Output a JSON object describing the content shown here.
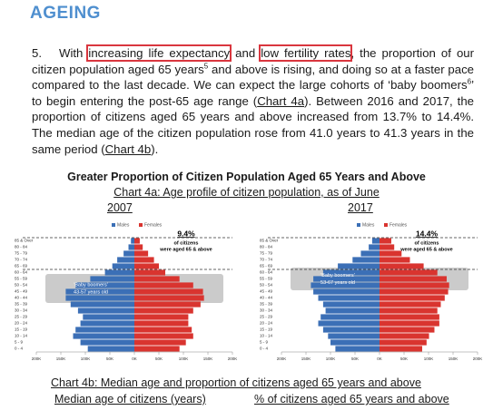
{
  "header": {
    "title": "AGEING"
  },
  "paragraph": {
    "number": "5.",
    "parts": [
      "With ",
      "increasing life expectancy",
      " and ",
      "low fertility rates",
      ", the proportion of our citizen population aged 65 years",
      "5",
      " and above is rising, and doing so at a faster pace compared to the last decade. We can expect the large cohorts of ‘baby boomers",
      "6",
      "’ to begin entering the post-65 age range (",
      "Chart 4a",
      "). Between 2016 and 2017, the proportion of citizens aged 65 years and above increased from 13.7% to 14.4%. The median age of the citizen population rose from 41.0 years to 41.3 years in the same period (",
      "Chart 4b",
      ")."
    ]
  },
  "figure": {
    "title": "Greater Proportion of Citizen Population Aged 65 Years and Above",
    "chart_4a_title": "Chart 4a: Age profile of citizen population, as of June",
    "chart_4b_title": "Chart 4b: Median age and proportion of citizens aged 65 years and above",
    "chart_4b_left": "Median age of citizens (years)",
    "chart_4b_right": "% of citizens aged 65 years and above"
  },
  "chart_data": [
    {
      "type": "pyramid",
      "title": "2007",
      "categories": [
        "0 - 4",
        "5 - 9",
        "10 - 14",
        "15 - 19",
        "20 - 24",
        "25 - 29",
        "30 - 34",
        "35 - 39",
        "40 - 44",
        "45 - 49",
        "50 - 54",
        "55 - 59",
        "60 - 64",
        "65 - 69",
        "70 - 74",
        "75 - 79",
        "80 - 84",
        "85 & Over"
      ],
      "series": [
        {
          "name": "Males",
          "color": "#3b6fb6",
          "values": [
            95,
            110,
            125,
            120,
            110,
            105,
            115,
            130,
            140,
            140,
            120,
            90,
            60,
            45,
            35,
            22,
            12,
            7
          ]
        },
        {
          "name": "Females",
          "color": "#d9342f",
          "values": [
            92,
            105,
            120,
            117,
            110,
            110,
            120,
            135,
            142,
            140,
            120,
            92,
            63,
            50,
            40,
            28,
            17,
            11
          ]
        }
      ],
      "xlim": [
        0,
        200
      ],
      "xticks": [
        {
          "value": 0,
          "label": "0K"
        },
        {
          "value": 50,
          "label": "50K"
        },
        {
          "value": 100,
          "label": "100K"
        },
        {
          "value": 150,
          "label": "150K"
        },
        {
          "value": 200,
          "label": "200K"
        }
      ],
      "annotations": {
        "share": "9.4%",
        "share_line1": "of citizens",
        "share_line2": "were aged 65 & above",
        "boomers": "'Baby boomers'",
        "boomers_ages": "43-57 years old"
      }
    },
    {
      "type": "pyramid",
      "title": "2017",
      "categories": [
        "0 - 4",
        "5 - 9",
        "10 - 14",
        "15 - 19",
        "20 - 24",
        "25 - 29",
        "30 - 34",
        "35 - 39",
        "40 - 44",
        "45 - 49",
        "50 - 54",
        "55 - 59",
        "60 - 64",
        "65 - 69",
        "70 - 74",
        "75 - 79",
        "80 - 84",
        "85 & Over"
      ],
      "series": [
        {
          "name": "Males",
          "color": "#3b6fb6",
          "values": [
            90,
            100,
            105,
            115,
            125,
            120,
            110,
            115,
            125,
            135,
            140,
            135,
            115,
            85,
            55,
            38,
            22,
            15
          ]
        },
        {
          "name": "Females",
          "color": "#d9342f",
          "values": [
            87,
            96,
            101,
            112,
            122,
            122,
            118,
            125,
            133,
            140,
            142,
            137,
            118,
            90,
            62,
            45,
            30,
            24
          ]
        }
      ],
      "xlim": [
        0,
        200
      ],
      "xticks": [
        {
          "value": 0,
          "label": "0K"
        },
        {
          "value": 50,
          "label": "50K"
        },
        {
          "value": 100,
          "label": "100K"
        },
        {
          "value": 150,
          "label": "150K"
        },
        {
          "value": 200,
          "label": "200K"
        }
      ],
      "annotations": {
        "share": "14.4%",
        "share_line1": "of citizens",
        "share_line2": "were aged 65 & above",
        "boomers": "'Baby boomers'",
        "boomers_ages": "53-67 years old"
      }
    }
  ]
}
